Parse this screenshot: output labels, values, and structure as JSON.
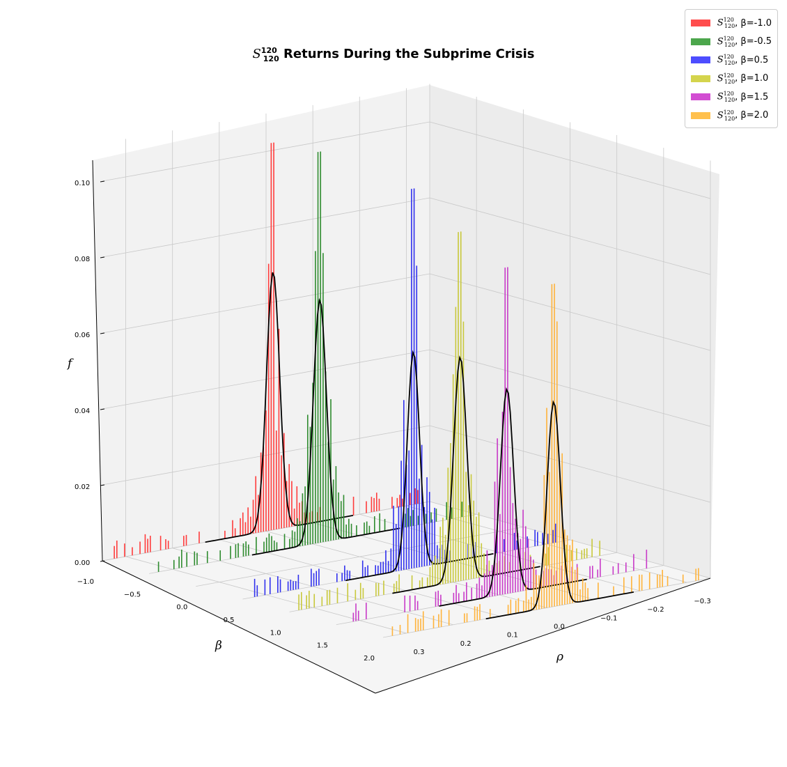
{
  "chart_data": {
    "type": "bar",
    "title_symbol": "S",
    "title_sup": "120",
    "title_sub": "120",
    "title_text": "Returns During the Subprime Crisis",
    "xlabel": "ρ",
    "ylabel": "β",
    "zlabel": "f",
    "x_ticks": [
      "0.3",
      "0.2",
      "0.1",
      "0.0",
      "−0.1",
      "−0.2",
      "−0.3"
    ],
    "y_ticks": [
      "−1.0",
      "−0.5",
      "0.0",
      "0.5",
      "1.0",
      "1.5",
      "2.0"
    ],
    "z_ticks": [
      "0.00",
      "0.02",
      "0.04",
      "0.06",
      "0.08",
      "0.10"
    ],
    "xlim": [
      0.35,
      -0.35
    ],
    "ylim": [
      -1.0,
      2.0
    ],
    "zlim": [
      0,
      0.1
    ],
    "grid": true,
    "legend_position": "top-right",
    "series": [
      {
        "name": "S₁₂₀¹²⁰, β=-1.0",
        "beta": -1.0,
        "color": "#ff3b3b",
        "peak_bar": 0.102,
        "fit_peak": 0.068,
        "fit_sigma": 0.014
      },
      {
        "name": "S₁₂₀¹²⁰, β=-0.5",
        "beta": -0.5,
        "color": "#2e8b2e",
        "peak_bar": 0.103,
        "fit_peak": 0.064,
        "fit_sigma": 0.014
      },
      {
        "name": "S₁₂₀¹²⁰, β=0.5",
        "beta": 0.5,
        "color": "#3030ee",
        "peak_bar": 0.1,
        "fit_peak": 0.057,
        "fit_sigma": 0.013
      },
      {
        "name": "S₁₂₀¹²⁰, β=1.0",
        "beta": 1.0,
        "color": "#c8c83a",
        "peak_bar": 0.092,
        "fit_peak": 0.059,
        "fit_sigma": 0.014
      },
      {
        "name": "S₁₂₀¹²⁰, β=1.5",
        "beta": 1.5,
        "color": "#c83ac8",
        "peak_bar": 0.086,
        "fit_peak": 0.054,
        "fit_sigma": 0.014
      },
      {
        "name": "S₁₂₀¹²⁰, β=2.0",
        "beta": 2.0,
        "color": "#ffb33a",
        "peak_bar": 0.085,
        "fit_peak": 0.054,
        "fit_sigma": 0.014
      }
    ],
    "legend": [
      {
        "beta_text": ", β=-1.0",
        "color": "#ff4d4d"
      },
      {
        "beta_text": ", β=-0.5",
        "color": "#4ca64c"
      },
      {
        "beta_text": ", β=0.5",
        "color": "#4d4dff"
      },
      {
        "beta_text": ", β=1.0",
        "color": "#d4d44d"
      },
      {
        "beta_text": ", β=1.5",
        "color": "#d24dd2"
      },
      {
        "beta_text": ", β=2.0",
        "color": "#ffc04d"
      }
    ]
  }
}
